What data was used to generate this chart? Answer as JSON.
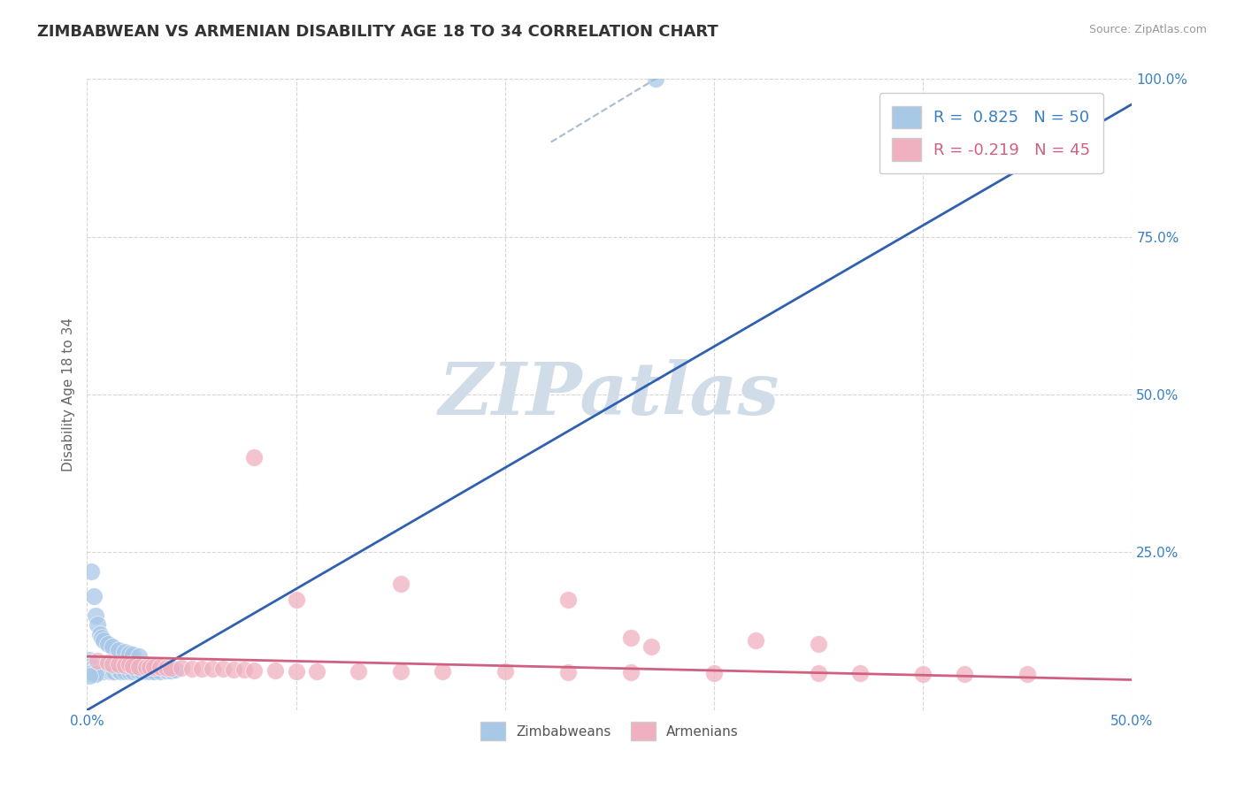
{
  "title": "ZIMBABWEAN VS ARMENIAN DISABILITY AGE 18 TO 34 CORRELATION CHART",
  "source": "Source: ZipAtlas.com",
  "ylabel": "Disability Age 18 to 34",
  "xlim": [
    0.0,
    0.5
  ],
  "ylim": [
    0.0,
    1.0
  ],
  "x_ticks": [
    0.0,
    0.1,
    0.2,
    0.3,
    0.4,
    0.5
  ],
  "x_tick_labels": [
    "0.0%",
    "",
    "",
    "",
    "",
    "50.0%"
  ],
  "y_ticks": [
    0.0,
    0.25,
    0.5,
    0.75,
    1.0
  ],
  "y_tick_labels": [
    "",
    "25.0%",
    "50.0%",
    "75.0%",
    "100.0%"
  ],
  "zim_R": 0.825,
  "zim_N": 50,
  "arm_R": -0.219,
  "arm_N": 45,
  "zim_color": "#a8c8e8",
  "arm_color": "#f0b0c0",
  "zim_line_color": "#3060b0",
  "arm_line_color": "#d06080",
  "watermark_text": "ZIPatlas",
  "watermark_color": "#d0dde8",
  "background_color": "#ffffff",
  "zim_line_x0": 0.0,
  "zim_line_y0": 0.0,
  "zim_line_x1": 0.5,
  "zim_line_y1": 0.96,
  "arm_line_x0": 0.0,
  "arm_line_y0": 0.085,
  "arm_line_x1": 0.5,
  "arm_line_y1": 0.048,
  "zim_outlier": [
    0.272,
    1.0
  ],
  "zim_points": [
    [
      0.002,
      0.22
    ],
    [
      0.003,
      0.18
    ],
    [
      0.004,
      0.15
    ],
    [
      0.005,
      0.135
    ],
    [
      0.006,
      0.12
    ],
    [
      0.007,
      0.115
    ],
    [
      0.008,
      0.11
    ],
    [
      0.01,
      0.105
    ],
    [
      0.012,
      0.1
    ],
    [
      0.015,
      0.095
    ],
    [
      0.018,
      0.092
    ],
    [
      0.02,
      0.09
    ],
    [
      0.022,
      0.088
    ],
    [
      0.025,
      0.085
    ],
    [
      0.001,
      0.08
    ],
    [
      0.001,
      0.075
    ],
    [
      0.001,
      0.07
    ],
    [
      0.002,
      0.07
    ],
    [
      0.002,
      0.065
    ],
    [
      0.003,
      0.065
    ],
    [
      0.003,
      0.068
    ],
    [
      0.004,
      0.066
    ],
    [
      0.005,
      0.063
    ],
    [
      0.006,
      0.062
    ],
    [
      0.007,
      0.062
    ],
    [
      0.008,
      0.061
    ],
    [
      0.009,
      0.065
    ],
    [
      0.01,
      0.063
    ],
    [
      0.011,
      0.062
    ],
    [
      0.012,
      0.062
    ],
    [
      0.013,
      0.062
    ],
    [
      0.015,
      0.063
    ],
    [
      0.016,
      0.062
    ],
    [
      0.018,
      0.062
    ],
    [
      0.02,
      0.062
    ],
    [
      0.022,
      0.062
    ],
    [
      0.024,
      0.063
    ],
    [
      0.026,
      0.062
    ],
    [
      0.028,
      0.062
    ],
    [
      0.03,
      0.062
    ],
    [
      0.032,
      0.062
    ],
    [
      0.035,
      0.062
    ],
    [
      0.038,
      0.063
    ],
    [
      0.04,
      0.063
    ],
    [
      0.042,
      0.064
    ],
    [
      0.001,
      0.058
    ],
    [
      0.002,
      0.058
    ],
    [
      0.003,
      0.057
    ],
    [
      0.004,
      0.057
    ],
    [
      0.001,
      0.055
    ]
  ],
  "arm_points": [
    [
      0.005,
      0.078
    ],
    [
      0.01,
      0.075
    ],
    [
      0.012,
      0.072
    ],
    [
      0.015,
      0.072
    ],
    [
      0.018,
      0.071
    ],
    [
      0.02,
      0.072
    ],
    [
      0.022,
      0.07
    ],
    [
      0.025,
      0.069
    ],
    [
      0.028,
      0.069
    ],
    [
      0.03,
      0.069
    ],
    [
      0.032,
      0.068
    ],
    [
      0.035,
      0.068
    ],
    [
      0.038,
      0.067
    ],
    [
      0.04,
      0.067
    ],
    [
      0.045,
      0.067
    ],
    [
      0.05,
      0.066
    ],
    [
      0.055,
      0.065
    ],
    [
      0.06,
      0.065
    ],
    [
      0.065,
      0.065
    ],
    [
      0.07,
      0.064
    ],
    [
      0.075,
      0.064
    ],
    [
      0.08,
      0.063
    ],
    [
      0.09,
      0.063
    ],
    [
      0.1,
      0.062
    ],
    [
      0.11,
      0.062
    ],
    [
      0.13,
      0.062
    ],
    [
      0.15,
      0.062
    ],
    [
      0.17,
      0.061
    ],
    [
      0.2,
      0.061
    ],
    [
      0.23,
      0.06
    ],
    [
      0.26,
      0.06
    ],
    [
      0.3,
      0.059
    ],
    [
      0.35,
      0.058
    ],
    [
      0.37,
      0.058
    ],
    [
      0.4,
      0.057
    ],
    [
      0.42,
      0.057
    ],
    [
      0.45,
      0.057
    ],
    [
      0.08,
      0.4
    ],
    [
      0.15,
      0.2
    ],
    [
      0.1,
      0.175
    ],
    [
      0.23,
      0.175
    ],
    [
      0.26,
      0.115
    ],
    [
      0.35,
      0.105
    ],
    [
      0.32,
      0.11
    ],
    [
      0.27,
      0.1
    ]
  ]
}
